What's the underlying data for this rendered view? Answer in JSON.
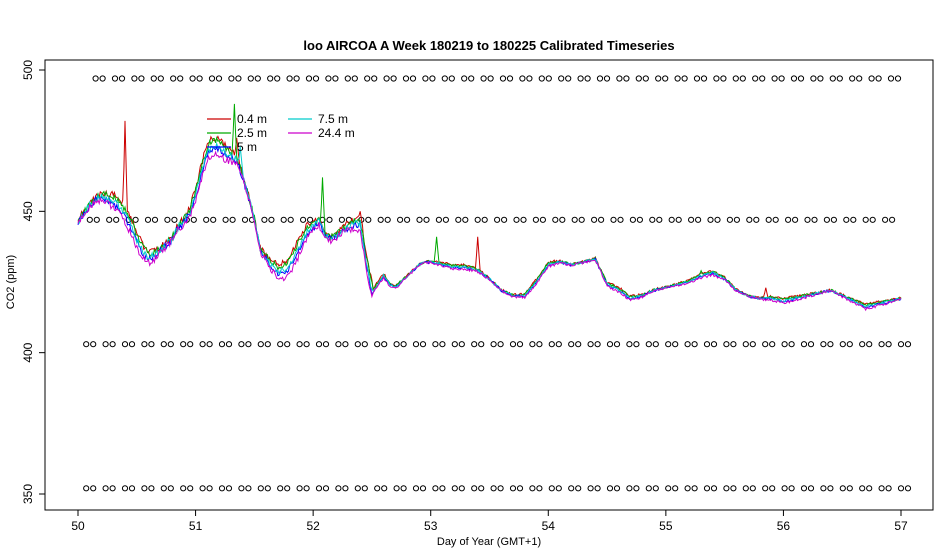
{
  "chart_data": {
    "type": "line",
    "title": "loo AIRCOA A  Week 180219 to 180225  Calibrated Timeseries",
    "xlabel": "Day of Year (GMT+1)",
    "ylabel": "CO2 (ppm)",
    "xlim": [
      50,
      57
    ],
    "ylim": [
      350,
      500
    ],
    "x_ticks": [
      50,
      51,
      52,
      53,
      54,
      55,
      56,
      57
    ],
    "y_ticks": [
      350,
      400,
      450,
      500
    ],
    "x_tick_labels": [
      "50",
      "51",
      "52",
      "53",
      "54",
      "55",
      "56",
      "57"
    ],
    "y_tick_labels": [
      "350",
      "400",
      "450",
      "500"
    ],
    "grid": false,
    "legend_position": "top-left",
    "legend_entries": [
      {
        "label": "0.4 m",
        "color": "#cc0000"
      },
      {
        "label": "2.5 m",
        "color": "#00aa00"
      },
      {
        "label": "5 m",
        "color": "#0000ff"
      },
      {
        "label": "7.5 m",
        "color": "#00cccc"
      },
      {
        "label": "24.4 m",
        "color": "#cc00cc"
      }
    ],
    "base_series": {
      "x": [
        50.0,
        50.05,
        50.1,
        50.15,
        50.2,
        50.25,
        50.3,
        50.35,
        50.4,
        50.45,
        50.5,
        50.55,
        50.6,
        50.65,
        50.7,
        50.75,
        50.8,
        50.85,
        50.9,
        50.95,
        51.0,
        51.05,
        51.1,
        51.15,
        51.2,
        51.25,
        51.3,
        51.35,
        51.4,
        51.45,
        51.5,
        51.55,
        51.6,
        51.65,
        51.7,
        51.75,
        51.8,
        51.85,
        51.9,
        51.95,
        52.0,
        52.05,
        52.1,
        52.15,
        52.2,
        52.25,
        52.3,
        52.35,
        52.4,
        52.45,
        52.5,
        52.55,
        52.6,
        52.65,
        52.7,
        52.75,
        52.8,
        52.85,
        52.9,
        52.95,
        53.0,
        53.1,
        53.2,
        53.3,
        53.4,
        53.5,
        53.6,
        53.7,
        53.8,
        53.9,
        54.0,
        54.1,
        54.2,
        54.3,
        54.4,
        54.5,
        54.6,
        54.7,
        54.8,
        54.9,
        55.0,
        55.1,
        55.2,
        55.3,
        55.4,
        55.5,
        55.6,
        55.7,
        55.8,
        55.9,
        56.0,
        56.1,
        56.2,
        56.3,
        56.4,
        56.5,
        56.6,
        56.7,
        56.8,
        56.9,
        57.0
      ],
      "y": [
        446,
        449,
        452,
        454,
        455,
        454,
        453,
        451,
        448,
        444,
        439,
        435,
        433,
        434,
        436,
        438,
        440,
        444,
        446,
        449,
        455,
        463,
        470,
        472,
        472,
        470,
        469,
        468,
        462,
        455,
        447,
        436,
        433,
        430,
        428,
        428,
        430,
        434,
        438,
        442,
        444,
        446,
        441,
        440,
        441,
        443,
        444,
        445,
        445,
        432,
        421,
        424,
        427,
        424,
        423,
        425,
        427,
        429,
        431,
        432,
        432,
        431,
        430,
        430,
        429,
        426,
        422,
        420,
        420,
        425,
        431,
        432,
        431,
        432,
        433,
        424,
        422,
        419,
        420,
        422,
        423,
        424,
        425,
        427,
        428,
        426,
        422,
        420,
        419,
        419,
        418,
        419,
        420,
        421,
        422,
        420,
        418,
        416,
        417,
        418,
        419
      ]
    },
    "series": [
      {
        "color": "#cc0000",
        "offsets_peak": 4,
        "spikes": [
          [
            50.4,
            482
          ],
          [
            51.35,
            476
          ],
          [
            52.4,
            450
          ],
          [
            53.4,
            441
          ],
          [
            55.85,
            423
          ]
        ]
      },
      {
        "color": "#00aa00",
        "offsets_peak": 3,
        "spikes": [
          [
            51.33,
            488
          ],
          [
            51.12,
            475
          ],
          [
            52.08,
            462
          ],
          [
            53.05,
            441
          ],
          [
            55.3,
            429
          ]
        ]
      },
      {
        "color": "#0000ff",
        "offsets_peak": 0,
        "spikes": []
      },
      {
        "color": "#00cccc",
        "offsets_peak": 1,
        "spikes": [
          [
            51.38,
            473
          ]
        ]
      },
      {
        "color": "#cc00cc",
        "offsets_peak": -2,
        "spikes": []
      }
    ],
    "reference_points": {
      "rows": [
        {
          "y": 497,
          "x_start": 50.15,
          "step": 0.165
        },
        {
          "y": 447,
          "x_start": 50.1,
          "step": 0.165
        },
        {
          "y": 403,
          "x_start": 50.07,
          "step": 0.165
        },
        {
          "y": 352,
          "x_start": 50.07,
          "step": 0.165
        }
      ]
    }
  }
}
